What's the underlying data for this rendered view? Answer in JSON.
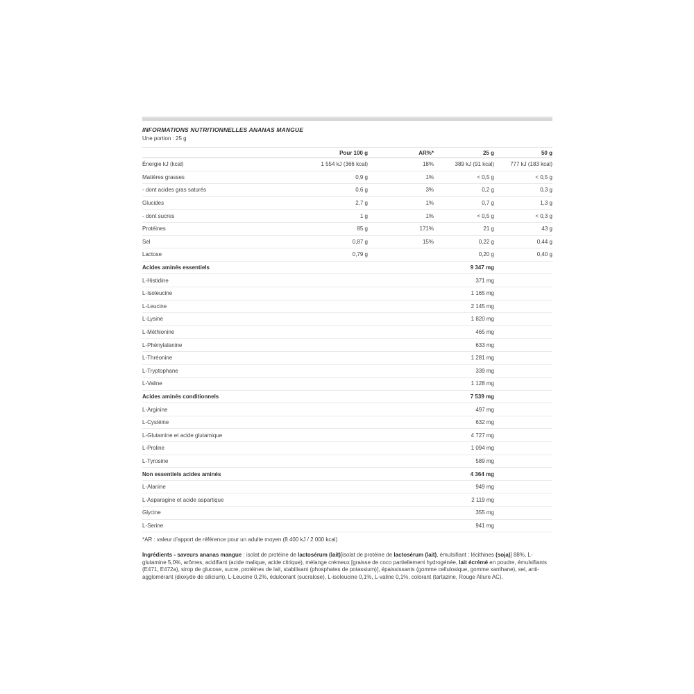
{
  "header": {
    "title": "INFORMATIONS NUTRITIONNELLES ANANAS MANGUE",
    "portion": "Une portion : 25 g"
  },
  "table": {
    "columns": {
      "per100": "Pour 100 g",
      "ar": "AR%*",
      "g25": "25 g",
      "g50": "50 g"
    },
    "rows": [
      {
        "label": "Énergie kJ (kcal)",
        "per100": "1 554 kJ (366 kcal)",
        "ar": "18%",
        "g25": "389 kJ (91 kcal)",
        "g50": "777 kJ (183 kcal)",
        "bold": false
      },
      {
        "label": "Matières grasses",
        "per100": "0,9 g",
        "ar": "1%",
        "g25": "< 0,5 g",
        "g50": "< 0,5 g",
        "bold": false
      },
      {
        "label": "- dont acides gras saturés",
        "per100": "0,6 g",
        "ar": "3%",
        "g25": "0,2 g",
        "g50": "0,3 g",
        "bold": false
      },
      {
        "label": "Glucides",
        "per100": "2,7 g",
        "ar": "1%",
        "g25": "0,7 g",
        "g50": "1,3 g",
        "bold": false
      },
      {
        "label": "- dont sucres",
        "per100": "1 g",
        "ar": "1%",
        "g25": "< 0,5 g",
        "g50": "< 0,3 g",
        "bold": false
      },
      {
        "label": "Protéines",
        "per100": "85 g",
        "ar": "171%",
        "g25": "21 g",
        "g50": "43 g",
        "bold": false
      },
      {
        "label": "Sel",
        "per100": "0,87 g",
        "ar": "15%",
        "g25": "0,22 g",
        "g50": "0,44 g",
        "bold": false
      },
      {
        "label": "Lactose",
        "per100": "0,79 g",
        "ar": "",
        "g25": "0,20 g",
        "g50": "0,40 g",
        "bold": false
      },
      {
        "label": "Acides aminés essentiels",
        "per100": "",
        "ar": "",
        "g25": "9 347 mg",
        "g50": "",
        "bold": true
      },
      {
        "label": "L-Histidine",
        "per100": "",
        "ar": "",
        "g25": "371 mg",
        "g50": "",
        "bold": false
      },
      {
        "label": "L-Isoleucine",
        "per100": "",
        "ar": "",
        "g25": "1 165 mg",
        "g50": "",
        "bold": false
      },
      {
        "label": "L-Leucine",
        "per100": "",
        "ar": "",
        "g25": "2 145 mg",
        "g50": "",
        "bold": false
      },
      {
        "label": "L-Lysine",
        "per100": "",
        "ar": "",
        "g25": "1 820 mg",
        "g50": "",
        "bold": false
      },
      {
        "label": "L-Méthionine",
        "per100": "",
        "ar": "",
        "g25": "465 mg",
        "g50": "",
        "bold": false
      },
      {
        "label": "L-Phénylalanine",
        "per100": "",
        "ar": "",
        "g25": "633 mg",
        "g50": "",
        "bold": false
      },
      {
        "label": "L-Thréonine",
        "per100": "",
        "ar": "",
        "g25": "1 281 mg",
        "g50": "",
        "bold": false
      },
      {
        "label": "L-Tryptophane",
        "per100": "",
        "ar": "",
        "g25": "339 mg",
        "g50": "",
        "bold": false
      },
      {
        "label": "L-Valine",
        "per100": "",
        "ar": "",
        "g25": "1 128 mg",
        "g50": "",
        "bold": false
      },
      {
        "label": "Acides aminés conditionnels",
        "per100": "",
        "ar": "",
        "g25": "7 539 mg",
        "g50": "",
        "bold": true
      },
      {
        "label": "L-Arginine",
        "per100": "",
        "ar": "",
        "g25": "497 mg",
        "g50": "",
        "bold": false
      },
      {
        "label": "L-Cystéine",
        "per100": "",
        "ar": "",
        "g25": "632 mg",
        "g50": "",
        "bold": false
      },
      {
        "label": "L-Glutamine et acide glutamique",
        "per100": "",
        "ar": "",
        "g25": "4 727 mg",
        "g50": "",
        "bold": false
      },
      {
        "label": "L-Proline",
        "per100": "",
        "ar": "",
        "g25": "1 094 mg",
        "g50": "",
        "bold": false
      },
      {
        "label": "L-Tyrosine",
        "per100": "",
        "ar": "",
        "g25": "589 mg",
        "g50": "",
        "bold": false
      },
      {
        "label": "Non essentiels acides aminés",
        "per100": "",
        "ar": "",
        "g25": "4 364 mg",
        "g50": "",
        "bold": true
      },
      {
        "label": "L-Alanine",
        "per100": "",
        "ar": "",
        "g25": "949 mg",
        "g50": "",
        "bold": false
      },
      {
        "label": "L-Asparagine et acide aspartique",
        "per100": "",
        "ar": "",
        "g25": "2 119 mg",
        "g50": "",
        "bold": false
      },
      {
        "label": "Glycine",
        "per100": "",
        "ar": "",
        "g25": "355 mg",
        "g50": "",
        "bold": false
      },
      {
        "label": "L-Serine",
        "per100": "",
        "ar": "",
        "g25": "941 mg",
        "g50": "",
        "bold": false
      }
    ],
    "footnote": "*AR : valeur d'apport de référence pour un adulte moyen (8 400 kJ / 2 000 kcal)"
  },
  "ingredients": {
    "segments": [
      {
        "text": "Ingrédients - saveurs ananas mangue",
        "bold": true
      },
      {
        "text": " : isolat de protéine de ",
        "bold": false
      },
      {
        "text": "lactosérum (lait)",
        "bold": true
      },
      {
        "text": "[isolat de protéine de ",
        "bold": false
      },
      {
        "text": "lactosérum (lait)",
        "bold": true
      },
      {
        "text": ", émulsifiant : lécithines ",
        "bold": false
      },
      {
        "text": "(soja)",
        "bold": true
      },
      {
        "text": "] 88%, L-glutamine 5,0%, arômes, acidifiant (acide malique, acide citrique), mélange crémeux [graisse de coco partiellement hydrogénée, ",
        "bold": false
      },
      {
        "text": "lait écrémé",
        "bold": true
      },
      {
        "text": " en poudre, émulsifiants (E471, E472a), sirop de glucose, sucre, protéines de lait, stabilisant (phosphates de potassium)], épaississants (gomme cellulosique, gomme xanthane), sel, anti-agglomérant (dioxyde de silicium), L-Leucine 0,2%, édulcorant (sucralose), L-isoleucine 0,1%, L-valine 0,1%, colorant (tartazine, Rouge Allure AC).",
        "bold": false
      }
    ]
  },
  "colors": {
    "text": "#3f3f3f",
    "bold_text": "#2e2e2e",
    "row_separator": "#e9e9e9",
    "header_rule": "#cccccc",
    "top_bar": "#d8d8d8",
    "background": "#ffffff"
  }
}
